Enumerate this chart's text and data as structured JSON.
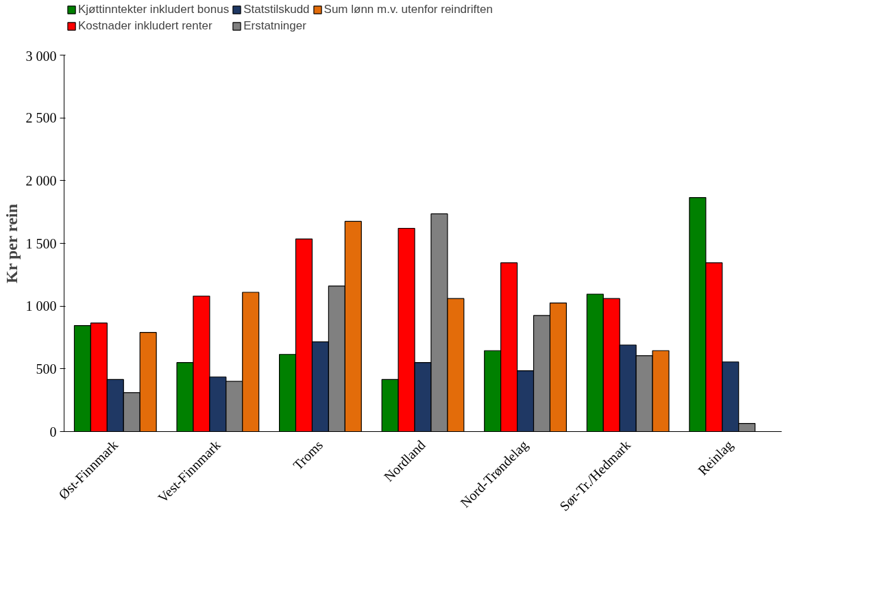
{
  "chart_data": {
    "type": "bar",
    "ylabel": "Kr per rein",
    "categories": [
      "Øst-Finnmark",
      "Vest-Finnmark",
      "Troms",
      "Nordland",
      "Nord-Trøndelag",
      "Sør-Tr./Hedmark",
      "Reinlag"
    ],
    "series": [
      {
        "name": "Kjøttinntekter inkludert bonus",
        "color": "#008000",
        "values": [
          845,
          550,
          615,
          415,
          645,
          1095,
          1865
        ]
      },
      {
        "name": "Kostnader inkludert renter",
        "color": "#ff0000",
        "values": [
          865,
          1080,
          1535,
          1620,
          1345,
          1060,
          1345
        ]
      },
      {
        "name": "Statstilskudd",
        "color": "#1f3864",
        "values": [
          415,
          435,
          715,
          550,
          485,
          690,
          555
        ]
      },
      {
        "name": "Erstatninger",
        "color": "#808080",
        "values": [
          310,
          400,
          1160,
          1735,
          925,
          605,
          65
        ]
      },
      {
        "name": "Sum lønn m.v. utenfor reindriften",
        "color": "#e36c0a",
        "values": [
          790,
          1110,
          1675,
          1060,
          1025,
          645,
          null
        ]
      }
    ],
    "ylim": [
      0,
      3000
    ],
    "yticks": [
      0,
      500,
      {
        "value": 1000,
        "label": "1 000"
      },
      {
        "value": 1500,
        "label": "1 500"
      },
      {
        "value": 2000,
        "label": "2 000"
      },
      {
        "value": 2500,
        "label": "2 500"
      },
      {
        "value": 3000,
        "label": "3 000"
      }
    ],
    "grid": false,
    "legend": "top"
  }
}
